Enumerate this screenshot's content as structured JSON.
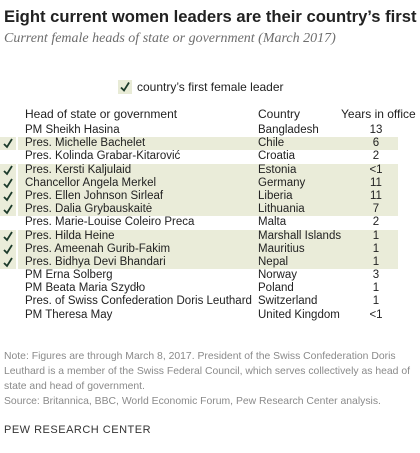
{
  "header": {
    "title": "Eight current women leaders are their country’s first",
    "subtitle": "Current female heads of state or government (March 2017)"
  },
  "legend": {
    "label": "country’s first female leader",
    "icon": "checkmark-icon"
  },
  "colors": {
    "highlight": "#eaecd9",
    "check": "#1b3a2a",
    "text": "#222222",
    "muted": "#8a8a8a"
  },
  "chart_data": {
    "type": "table",
    "columns": [
      "Head of state or government",
      "Country",
      "Years in office"
    ],
    "rows": [
      {
        "name": "PM Sheikh Hasina",
        "country": "Bangladesh",
        "years": "13",
        "first": false
      },
      {
        "name": "Pres. Michelle Bachelet",
        "country": "Chile",
        "years": "6",
        "first": true
      },
      {
        "name": "Pres. Kolinda Grabar-Kitarović",
        "country": "Croatia",
        "years": "2",
        "first": false
      },
      {
        "name": "Pres. Kersti Kaljulaid",
        "country": "Estonia",
        "years": "<1",
        "first": true
      },
      {
        "name": "Chancellor Angela Merkel",
        "country": "Germany",
        "years": "11",
        "first": true
      },
      {
        "name": "Pres. Ellen Johnson Sirleaf",
        "country": "Liberia",
        "years": "11",
        "first": true
      },
      {
        "name": "Pres. Dalia Grybauskaitė",
        "country": "Lithuania",
        "years": "7",
        "first": true
      },
      {
        "name": "Pres. Marie-Louise Coleiro Preca",
        "country": "Malta",
        "years": "2",
        "first": false
      },
      {
        "name": "Pres. Hilda Heine",
        "country": "Marshall Islands",
        "years": "1",
        "first": true
      },
      {
        "name": "Pres. Ameenah Gurib-Fakim",
        "country": "Mauritius",
        "years": "1",
        "first": true
      },
      {
        "name": "Pres. Bidhya Devi Bhandari",
        "country": "Nepal",
        "years": "1",
        "first": true
      },
      {
        "name": "PM Erna Solberg",
        "country": "Norway",
        "years": "3",
        "first": false
      },
      {
        "name": "PM Beata Maria Szydło",
        "country": "Poland",
        "years": "1",
        "first": false
      },
      {
        "name": "Pres. of Swiss Confederation Doris Leuthard",
        "country": "Switzerland",
        "years": "1",
        "first": false
      },
      {
        "name": "PM Theresa May",
        "country": "United Kingdom",
        "years": "<1",
        "first": false
      }
    ]
  },
  "footer": {
    "note": "Note: Figures are through March 8, 2017. President of the Swiss Confederation Doris Leuthard is a member of the Swiss Federal Council, which serves collectively as head of state and head of government.",
    "source": "Source: Britannica, BBC, World Economic Forum, Pew Research Center analysis.",
    "brand": "PEW RESEARCH CENTER"
  }
}
